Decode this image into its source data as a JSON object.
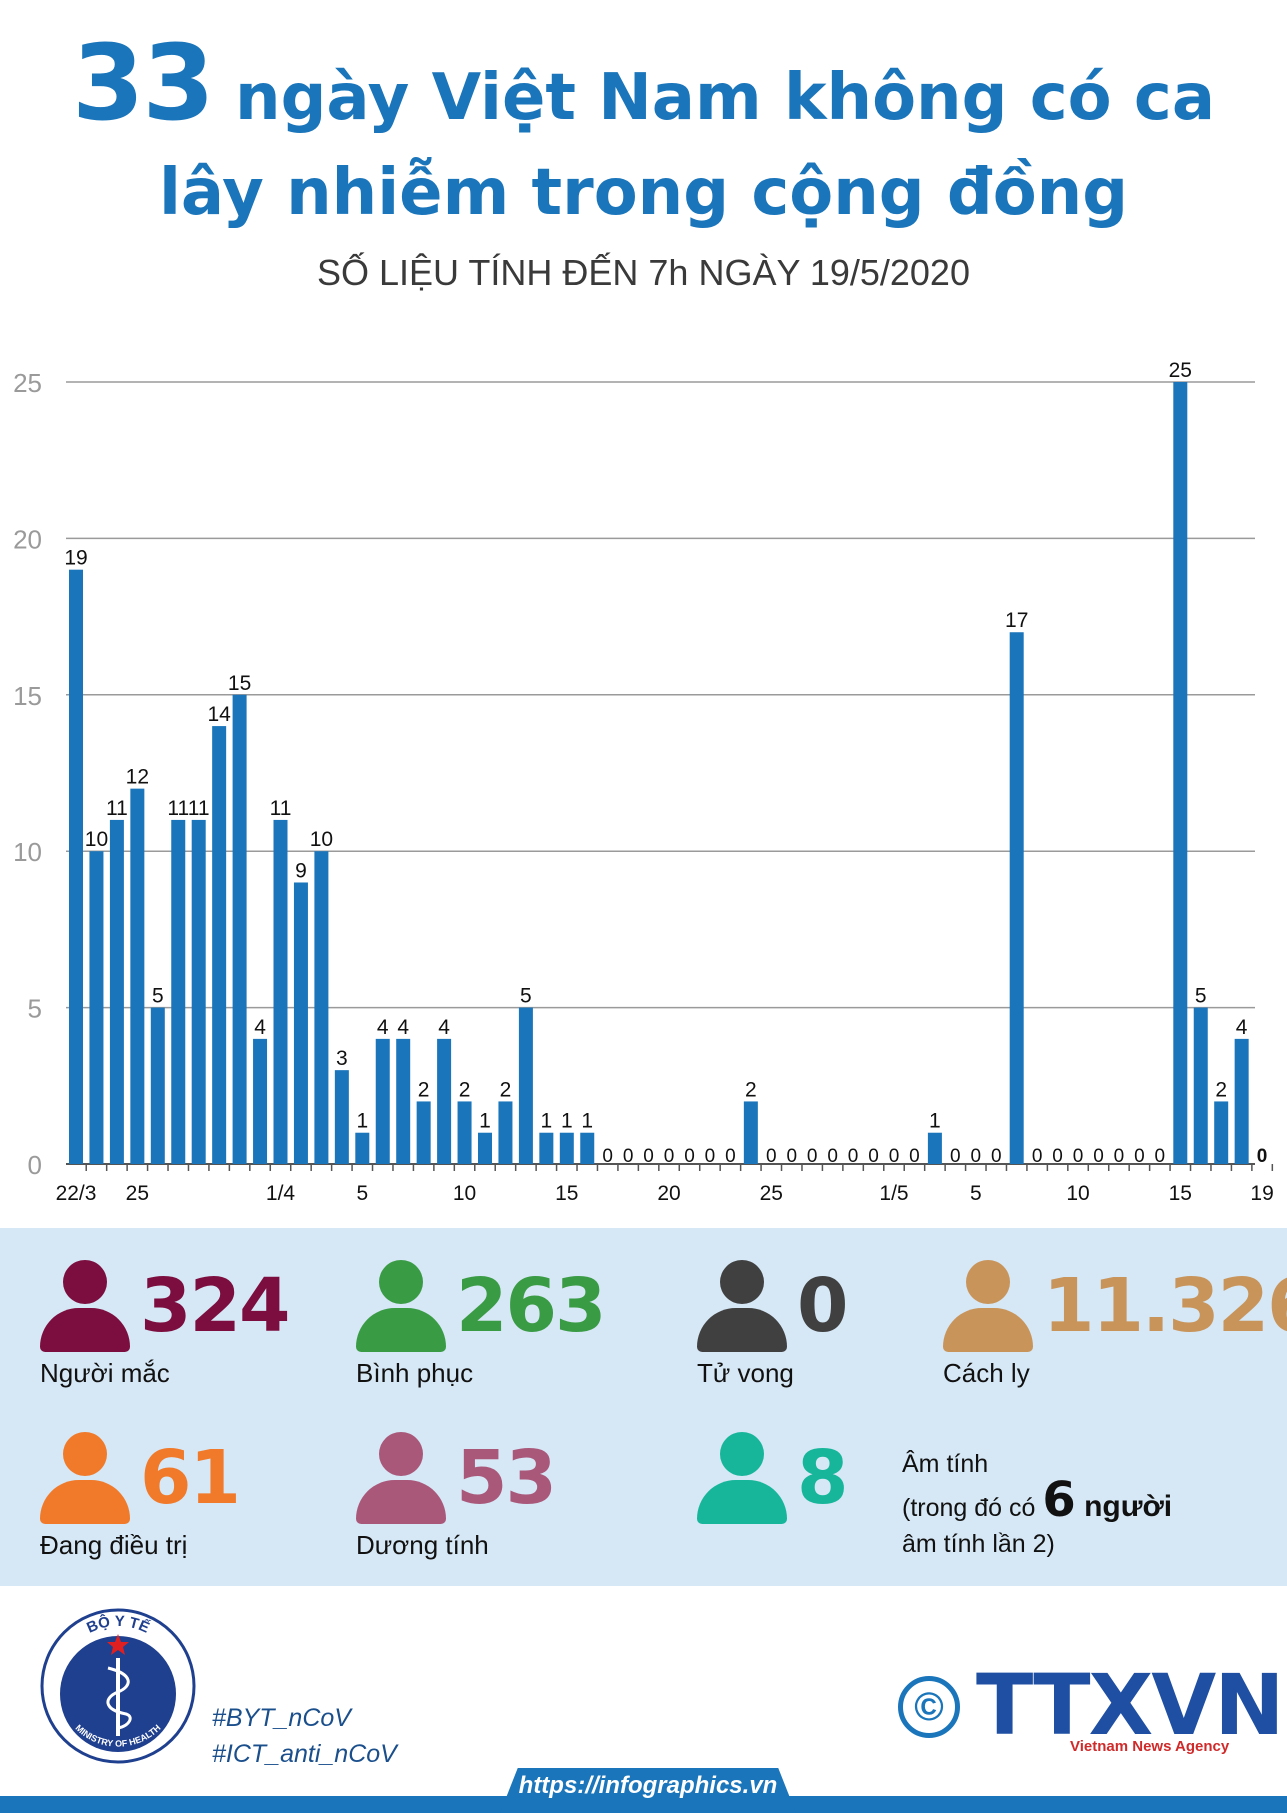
{
  "header": {
    "title_number": "33",
    "title_line1_rest": " ngày Việt Nam không có ca",
    "title_line2": "lây nhiễm trong cộng đồng",
    "subtitle": "SỐ LIỆU TÍNH ĐẾN 7h NGÀY 19/5/2020"
  },
  "chart_data": {
    "type": "bar",
    "title": "33 ngày Việt Nam không có ca lây nhiễm trong cộng đồng",
    "xlabel": "",
    "ylabel": "",
    "ylim": [
      0,
      25
    ],
    "yticks": [
      "0",
      "5",
      "10",
      "15",
      "20",
      "25"
    ],
    "grid": true,
    "x_tick_labels": [
      {
        "index": 0,
        "label": "22/3"
      },
      {
        "index": 3,
        "label": "25"
      },
      {
        "index": 10,
        "label": "1/4"
      },
      {
        "index": 14,
        "label": "5"
      },
      {
        "index": 19,
        "label": "10"
      },
      {
        "index": 24,
        "label": "15"
      },
      {
        "index": 29,
        "label": "20"
      },
      {
        "index": 34,
        "label": "25"
      },
      {
        "index": 40,
        "label": "1/5"
      },
      {
        "index": 44,
        "label": "5"
      },
      {
        "index": 49,
        "label": "10"
      },
      {
        "index": 54,
        "label": "15"
      },
      {
        "index": 58,
        "label": "19"
      }
    ],
    "values": [
      19,
      10,
      11,
      12,
      5,
      11,
      11,
      14,
      15,
      4,
      11,
      9,
      10,
      3,
      1,
      4,
      4,
      2,
      4,
      2,
      1,
      2,
      5,
      1,
      1,
      1,
      0,
      0,
      0,
      0,
      0,
      0,
      0,
      2,
      0,
      0,
      0,
      0,
      0,
      0,
      0,
      0,
      1,
      0,
      0,
      0,
      17,
      0,
      0,
      0,
      0,
      0,
      0,
      0,
      25,
      5,
      2,
      4,
      0
    ],
    "color": "#1a75bb"
  },
  "stats": [
    {
      "value": "324",
      "label": "Người mắc",
      "color": "#7b0e3e"
    },
    {
      "value": "263",
      "label": "Bình phục",
      "color": "#3a9b45"
    },
    {
      "value": "0",
      "label": "Tử vong",
      "color": "#404040"
    },
    {
      "value": "11.326",
      "label": "Cách ly",
      "color": "#c8945a"
    },
    {
      "value": "61",
      "label": "Đang điều trị",
      "color": "#f07a2a"
    },
    {
      "value": "53",
      "label": "Dương tính",
      "color": "#a9587a"
    },
    {
      "value": "8",
      "label": "",
      "color": "#17b69a"
    }
  ],
  "negative_note": {
    "line1": "Âm tính",
    "line2_pre": "(trong đó có ",
    "line2_num": "6",
    "line2_post": " người",
    "line3": "âm tính lần 2)"
  },
  "footer": {
    "logo_top_text": "BỘ Y TẾ",
    "logo_bottom_text": "MINISTRY OF HEALTH",
    "hashtag1": "#BYT_nCoV",
    "hashtag2": "#ICT_anti_nCoV",
    "copyright_symbol": "©",
    "agency": "TTXVN",
    "agency_sub": "Vietnam News Agency",
    "url": "https://infographics.vn"
  }
}
